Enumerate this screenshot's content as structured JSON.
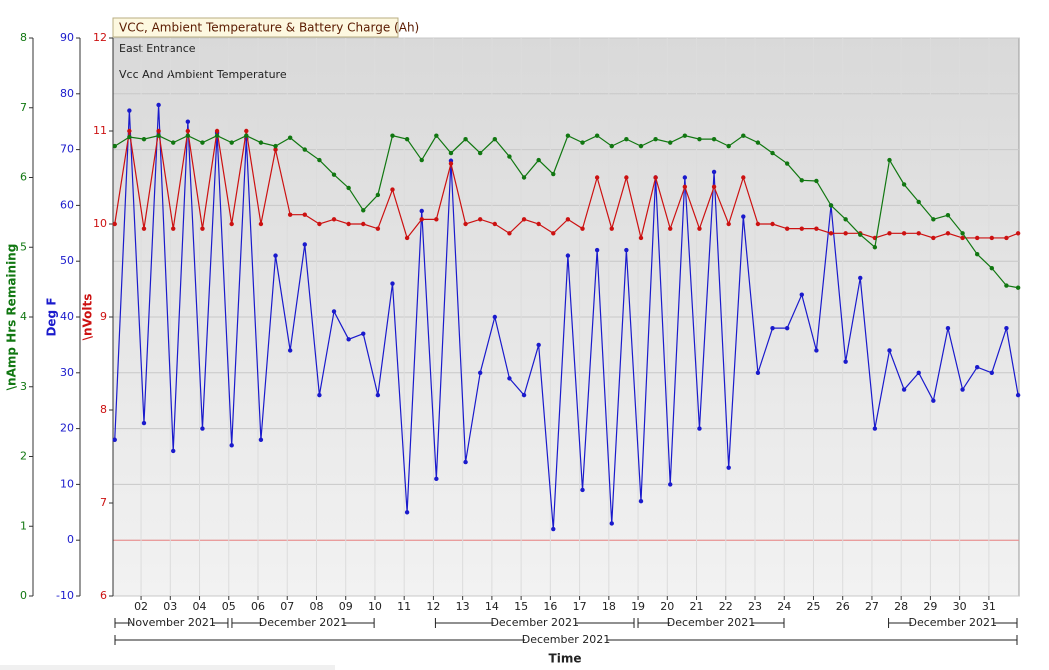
{
  "chart_data": {
    "type": "line",
    "title": "VCC, Ambient Temperature & Battery Charge (Ah)",
    "annotations": [
      "East Entrance",
      "Vcc And Ambient Temperature"
    ],
    "x_label": "Time",
    "y_label": "Deg F",
    "y2_label": "\\nVolts",
    "y3_label": "\\nAmp Hrs Remaining",
    "xlim": [
      1.04,
      32.03
    ],
    "xticks": [
      {
        "value": 2,
        "label": "02"
      },
      {
        "value": 3,
        "label": "03"
      },
      {
        "value": 4,
        "label": "04"
      },
      {
        "value": 5,
        "label": "05"
      },
      {
        "value": 6,
        "label": "06"
      },
      {
        "value": 7,
        "label": "07"
      },
      {
        "value": 8,
        "label": "08"
      },
      {
        "value": 9,
        "label": "09"
      },
      10,
      11,
      12,
      13,
      14,
      15,
      16,
      17,
      18,
      19,
      20,
      21,
      22,
      23,
      24,
      25,
      26,
      27,
      28,
      29,
      30,
      31
    ],
    "bands": [
      {
        "label": "November 2021",
        "from": 1.04,
        "to": 5.04
      },
      {
        "label": "December 2021",
        "from": 5.04,
        "to": 10.04
      },
      {
        "label": "December 2021",
        "from": 12.0,
        "to": 18.93
      },
      {
        "label": "December 2021",
        "from": 18.93,
        "to": 24.06
      },
      {
        "label": "December 2021",
        "from": 27.5,
        "to": 32.03
      }
    ],
    "bands2": [
      {
        "label": "December 2021",
        "from": 1.04,
        "to": 32.03
      }
    ],
    "ylim": [
      -10,
      90
    ],
    "yticks": [
      -10,
      0,
      10,
      20,
      30,
      40,
      50,
      60,
      70,
      80,
      90
    ],
    "y2lim": [
      6,
      12
    ],
    "y2ticks": [
      6,
      7,
      8,
      9,
      10,
      11,
      12
    ],
    "y3lim": [
      0,
      8
    ],
    "y3ticks": [
      0,
      1,
      2,
      3,
      4,
      5,
      6,
      7,
      8
    ],
    "grid": true,
    "x": [
      1.1,
      1.6,
      2.1,
      2.6,
      3.1,
      3.6,
      4.1,
      4.6,
      5.1,
      5.6,
      6.1,
      6.6,
      7.1,
      7.6,
      8.1,
      8.6,
      9.1,
      9.6,
      10.1,
      10.6,
      11.1,
      11.6,
      12.1,
      12.6,
      13.1,
      13.6,
      14.1,
      14.6,
      15.1,
      15.6,
      16.1,
      16.6,
      17.1,
      17.6,
      18.1,
      18.6,
      19.1,
      19.6,
      20.1,
      20.6,
      21.1,
      21.6,
      22.1,
      22.6,
      23.1,
      23.6,
      24.1,
      24.6,
      25.1,
      25.6,
      26.1,
      26.6,
      27.1,
      27.6,
      28.1,
      28.6,
      29.1,
      29.6,
      30.1,
      30.6,
      31.1,
      31.6,
      32.0
    ],
    "series": [
      {
        "name": "Deg F",
        "color": "#1a1acc",
        "axis": "y",
        "values": [
          18,
          77,
          21,
          78,
          16,
          75,
          20,
          73,
          17,
          72,
          18,
          51,
          34,
          53,
          26,
          41,
          36,
          37,
          26,
          46,
          5,
          59,
          11,
          68,
          14,
          30,
          40,
          29,
          26,
          35,
          2,
          51,
          9,
          52,
          3,
          52,
          7,
          65,
          10,
          65,
          20,
          66,
          13,
          58,
          30,
          38,
          38,
          44,
          34,
          60,
          32,
          47,
          20,
          34,
          27,
          30,
          25,
          38,
          27,
          31,
          30,
          38,
          26
        ]
      },
      {
        "name": "Volts",
        "color": "#cc1111",
        "axis": "y2",
        "values": [
          10.0,
          11.0,
          9.95,
          11.0,
          9.95,
          11.0,
          9.95,
          11.0,
          10.0,
          11.0,
          10.0,
          10.8,
          10.1,
          10.1,
          10.0,
          10.05,
          10.0,
          10.0,
          9.95,
          10.37,
          9.85,
          10.05,
          10.05,
          10.65,
          10.0,
          10.05,
          10.0,
          9.9,
          10.05,
          10.0,
          9.9,
          10.05,
          9.95,
          10.5,
          9.95,
          10.5,
          9.85,
          10.5,
          9.95,
          10.4,
          9.95,
          10.4,
          10.0,
          10.5,
          10.0,
          10.0,
          9.95,
          9.95,
          9.95,
          9.9,
          9.9,
          9.9,
          9.85,
          9.9,
          9.9,
          9.9,
          9.85,
          9.9,
          9.85,
          9.85,
          9.85,
          9.85,
          9.9
        ]
      },
      {
        "name": "Amp Hrs",
        "color": "#117711",
        "axis": "y3",
        "values": [
          6.45,
          6.58,
          6.55,
          6.6,
          6.5,
          6.6,
          6.5,
          6.6,
          6.5,
          6.6,
          6.5,
          6.45,
          6.57,
          6.4,
          6.25,
          6.04,
          5.85,
          5.53,
          5.75,
          6.6,
          6.55,
          6.25,
          6.6,
          6.35,
          6.55,
          6.35,
          6.55,
          6.3,
          6.0,
          6.25,
          6.05,
          6.6,
          6.5,
          6.6,
          6.45,
          6.55,
          6.45,
          6.55,
          6.5,
          6.6,
          6.55,
          6.55,
          6.45,
          6.6,
          6.5,
          6.35,
          6.2,
          5.96,
          5.95,
          5.6,
          5.4,
          5.18,
          5.0,
          6.25,
          5.9,
          5.65,
          5.4,
          5.46,
          5.2,
          4.9,
          4.7,
          4.45,
          4.42
        ]
      }
    ]
  }
}
